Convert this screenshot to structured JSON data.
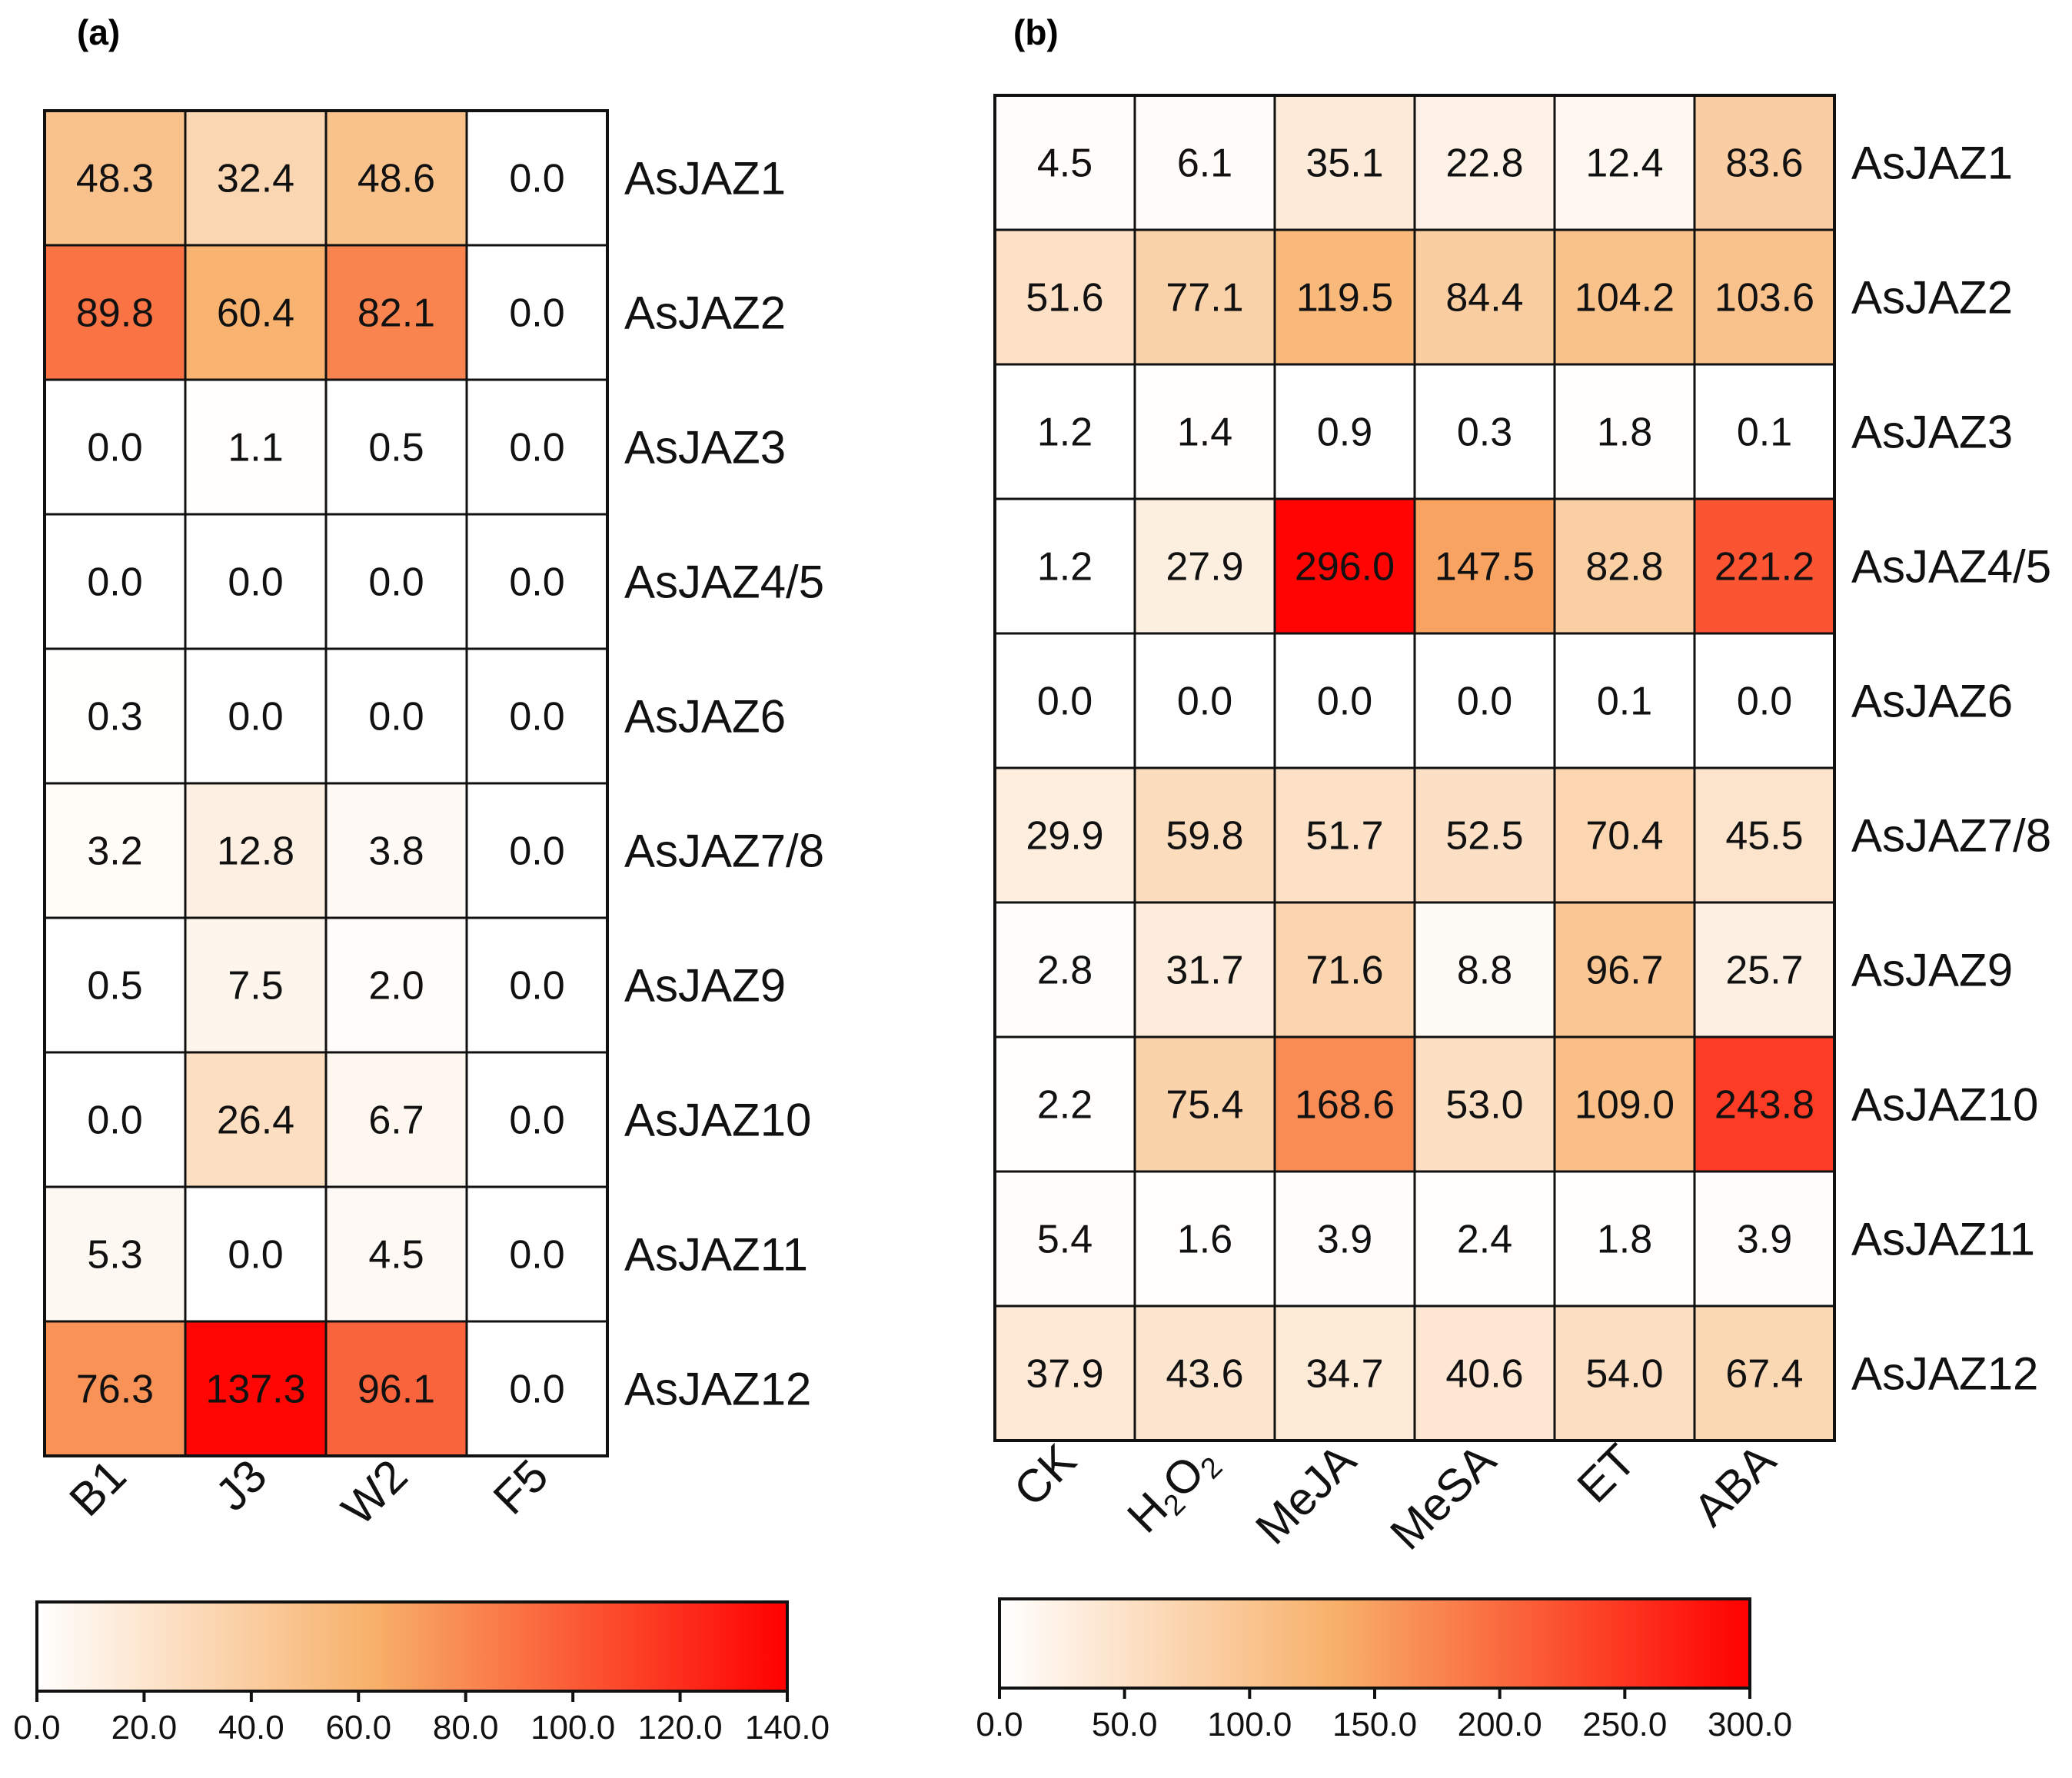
{
  "panels": [
    {
      "label": "(a)",
      "columns": [
        "B1",
        "J3",
        "W2",
        "F5"
      ],
      "genes": [
        "AsJAZ1",
        "AsJAZ2",
        "AsJAZ3",
        "AsJAZ4/5",
        "AsJAZ6",
        "AsJAZ7/8",
        "AsJAZ9",
        "AsJAZ10",
        "AsJAZ11",
        "AsJAZ12"
      ],
      "colorbar_ticks": [
        "0.0",
        "20.0",
        "40.0",
        "60.0",
        "80.0",
        "100.0",
        "120.0",
        "140.0"
      ]
    },
    {
      "label": "(b)",
      "columns": [
        "CK",
        "H2O2",
        "MeJA",
        "MeSA",
        "ET",
        "ABA"
      ],
      "genes": [
        "AsJAZ1",
        "AsJAZ2",
        "AsJAZ3",
        "AsJAZ4/5",
        "AsJAZ6",
        "AsJAZ7/8",
        "AsJAZ9",
        "AsJAZ10",
        "AsJAZ11",
        "AsJAZ12"
      ],
      "colorbar_ticks": [
        "0.0",
        "50.0",
        "100.0",
        "150.0",
        "200.0",
        "250.0",
        "300.0"
      ]
    }
  ],
  "colors": {
    "scale_low": "#ffffff",
    "scale_mid": "#f7b069",
    "scale_high": "#ff0000",
    "grid": "#111111"
  },
  "chart_data": [
    {
      "type": "heatmap",
      "title": "(a)",
      "x": [
        "B1",
        "J3",
        "W2",
        "F5"
      ],
      "y": [
        "AsJAZ1",
        "AsJAZ2",
        "AsJAZ3",
        "AsJAZ4/5",
        "AsJAZ6",
        "AsJAZ7/8",
        "AsJAZ9",
        "AsJAZ10",
        "AsJAZ11",
        "AsJAZ12"
      ],
      "values": [
        [
          "48.3",
          "32.4",
          "48.6",
          "0.0"
        ],
        [
          "89.8",
          "60.4",
          "82.1",
          "0.0"
        ],
        [
          "0.0",
          "1.1",
          "0.5",
          "0.0"
        ],
        [
          "0.0",
          "0.0",
          "0.0",
          "0.0"
        ],
        [
          "0.3",
          "0.0",
          "0.0",
          "0.0"
        ],
        [
          "3.2",
          "12.8",
          "3.8",
          "0.0"
        ],
        [
          "0.5",
          "7.5",
          "2.0",
          "0.0"
        ],
        [
          "0.0",
          "26.4",
          "6.7",
          "0.0"
        ],
        [
          "5.3",
          "0.0",
          "4.5",
          "0.0"
        ],
        [
          "76.3",
          "137.3",
          "96.1",
          "0.0"
        ]
      ],
      "color_range": [
        0,
        140
      ],
      "colorbar_position": "bottom"
    },
    {
      "type": "heatmap",
      "title": "(b)",
      "x": [
        "CK",
        "H2O2",
        "MeJA",
        "MeSA",
        "ET",
        "ABA"
      ],
      "y": [
        "AsJAZ1",
        "AsJAZ2",
        "AsJAZ3",
        "AsJAZ4/5",
        "AsJAZ6",
        "AsJAZ7/8",
        "AsJAZ9",
        "AsJAZ10",
        "AsJAZ11",
        "AsJAZ12"
      ],
      "values": [
        [
          "4.5",
          "6.1",
          "35.1",
          "22.8",
          "12.4",
          "83.6"
        ],
        [
          "51.6",
          "77.1",
          "119.5",
          "84.4",
          "104.2",
          "103.6"
        ],
        [
          "1.2",
          "1.4",
          "0.9",
          "0.3",
          "1.8",
          "0.1"
        ],
        [
          "1.2",
          "27.9",
          "296.0",
          "147.5",
          "82.8",
          "221.2"
        ],
        [
          "0.0",
          "0.0",
          "0.0",
          "0.0",
          "0.1",
          "0.0"
        ],
        [
          "29.9",
          "59.8",
          "51.7",
          "52.5",
          "70.4",
          "45.5"
        ],
        [
          "2.8",
          "31.7",
          "71.6",
          "8.8",
          "96.7",
          "25.7"
        ],
        [
          "2.2",
          "75.4",
          "168.6",
          "53.0",
          "109.0",
          "243.8"
        ],
        [
          "5.4",
          "1.6",
          "3.9",
          "2.4",
          "1.8",
          "3.9"
        ],
        [
          "37.9",
          "43.6",
          "34.7",
          "40.6",
          "54.0",
          "67.4"
        ]
      ],
      "color_range": [
        0,
        300
      ],
      "colorbar_position": "bottom"
    }
  ]
}
